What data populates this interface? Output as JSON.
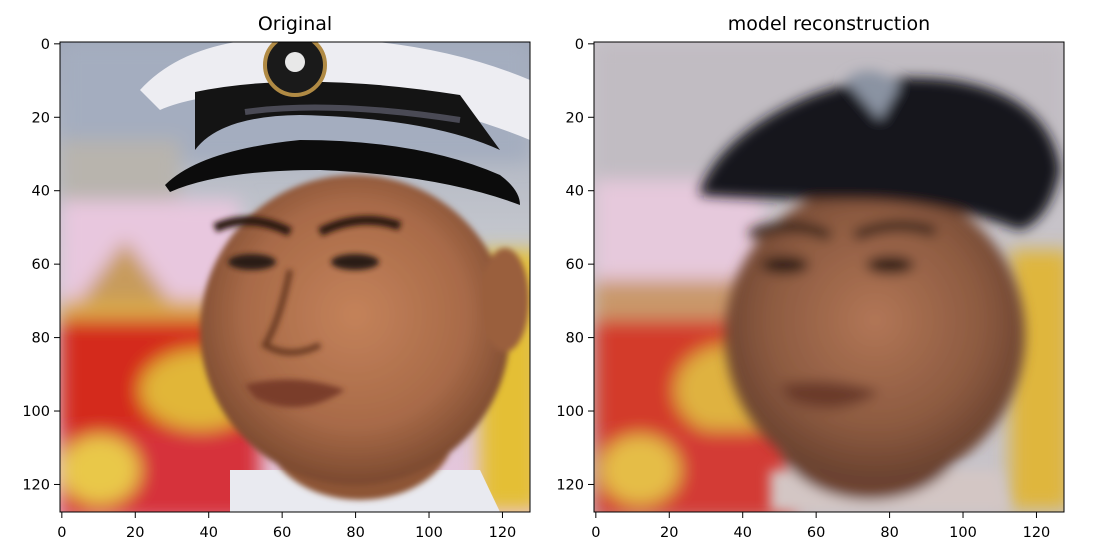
{
  "chart_data": [
    {
      "type": "image",
      "title": "Original",
      "xlim": [
        0,
        127
      ],
      "ylim": [
        127,
        0
      ],
      "xticks": [
        "0",
        "20",
        "40",
        "60",
        "80",
        "100",
        "120"
      ],
      "yticks": [
        "0",
        "20",
        "40",
        "60",
        "80",
        "100",
        "120"
      ],
      "image_semantic": "photo-portrait-man-white-captain-cap-sharp"
    },
    {
      "type": "image",
      "title": "model reconstruction",
      "xlim": [
        0,
        127
      ],
      "ylim": [
        127,
        0
      ],
      "xticks": [
        "0",
        "20",
        "40",
        "60",
        "80",
        "100",
        "120"
      ],
      "yticks": [
        "0",
        "20",
        "40",
        "60",
        "80",
        "100",
        "120"
      ],
      "image_semantic": "photo-portrait-man-dark-cap-blurred"
    }
  ],
  "colors": {
    "sky": "#aeb7c6",
    "pink": "#e9c4dd",
    "red": "#d62b20",
    "yellow": "#e6c237",
    "skin": "#a86a48",
    "cap_white": "#eeeef2",
    "cap_black": "#141414"
  }
}
